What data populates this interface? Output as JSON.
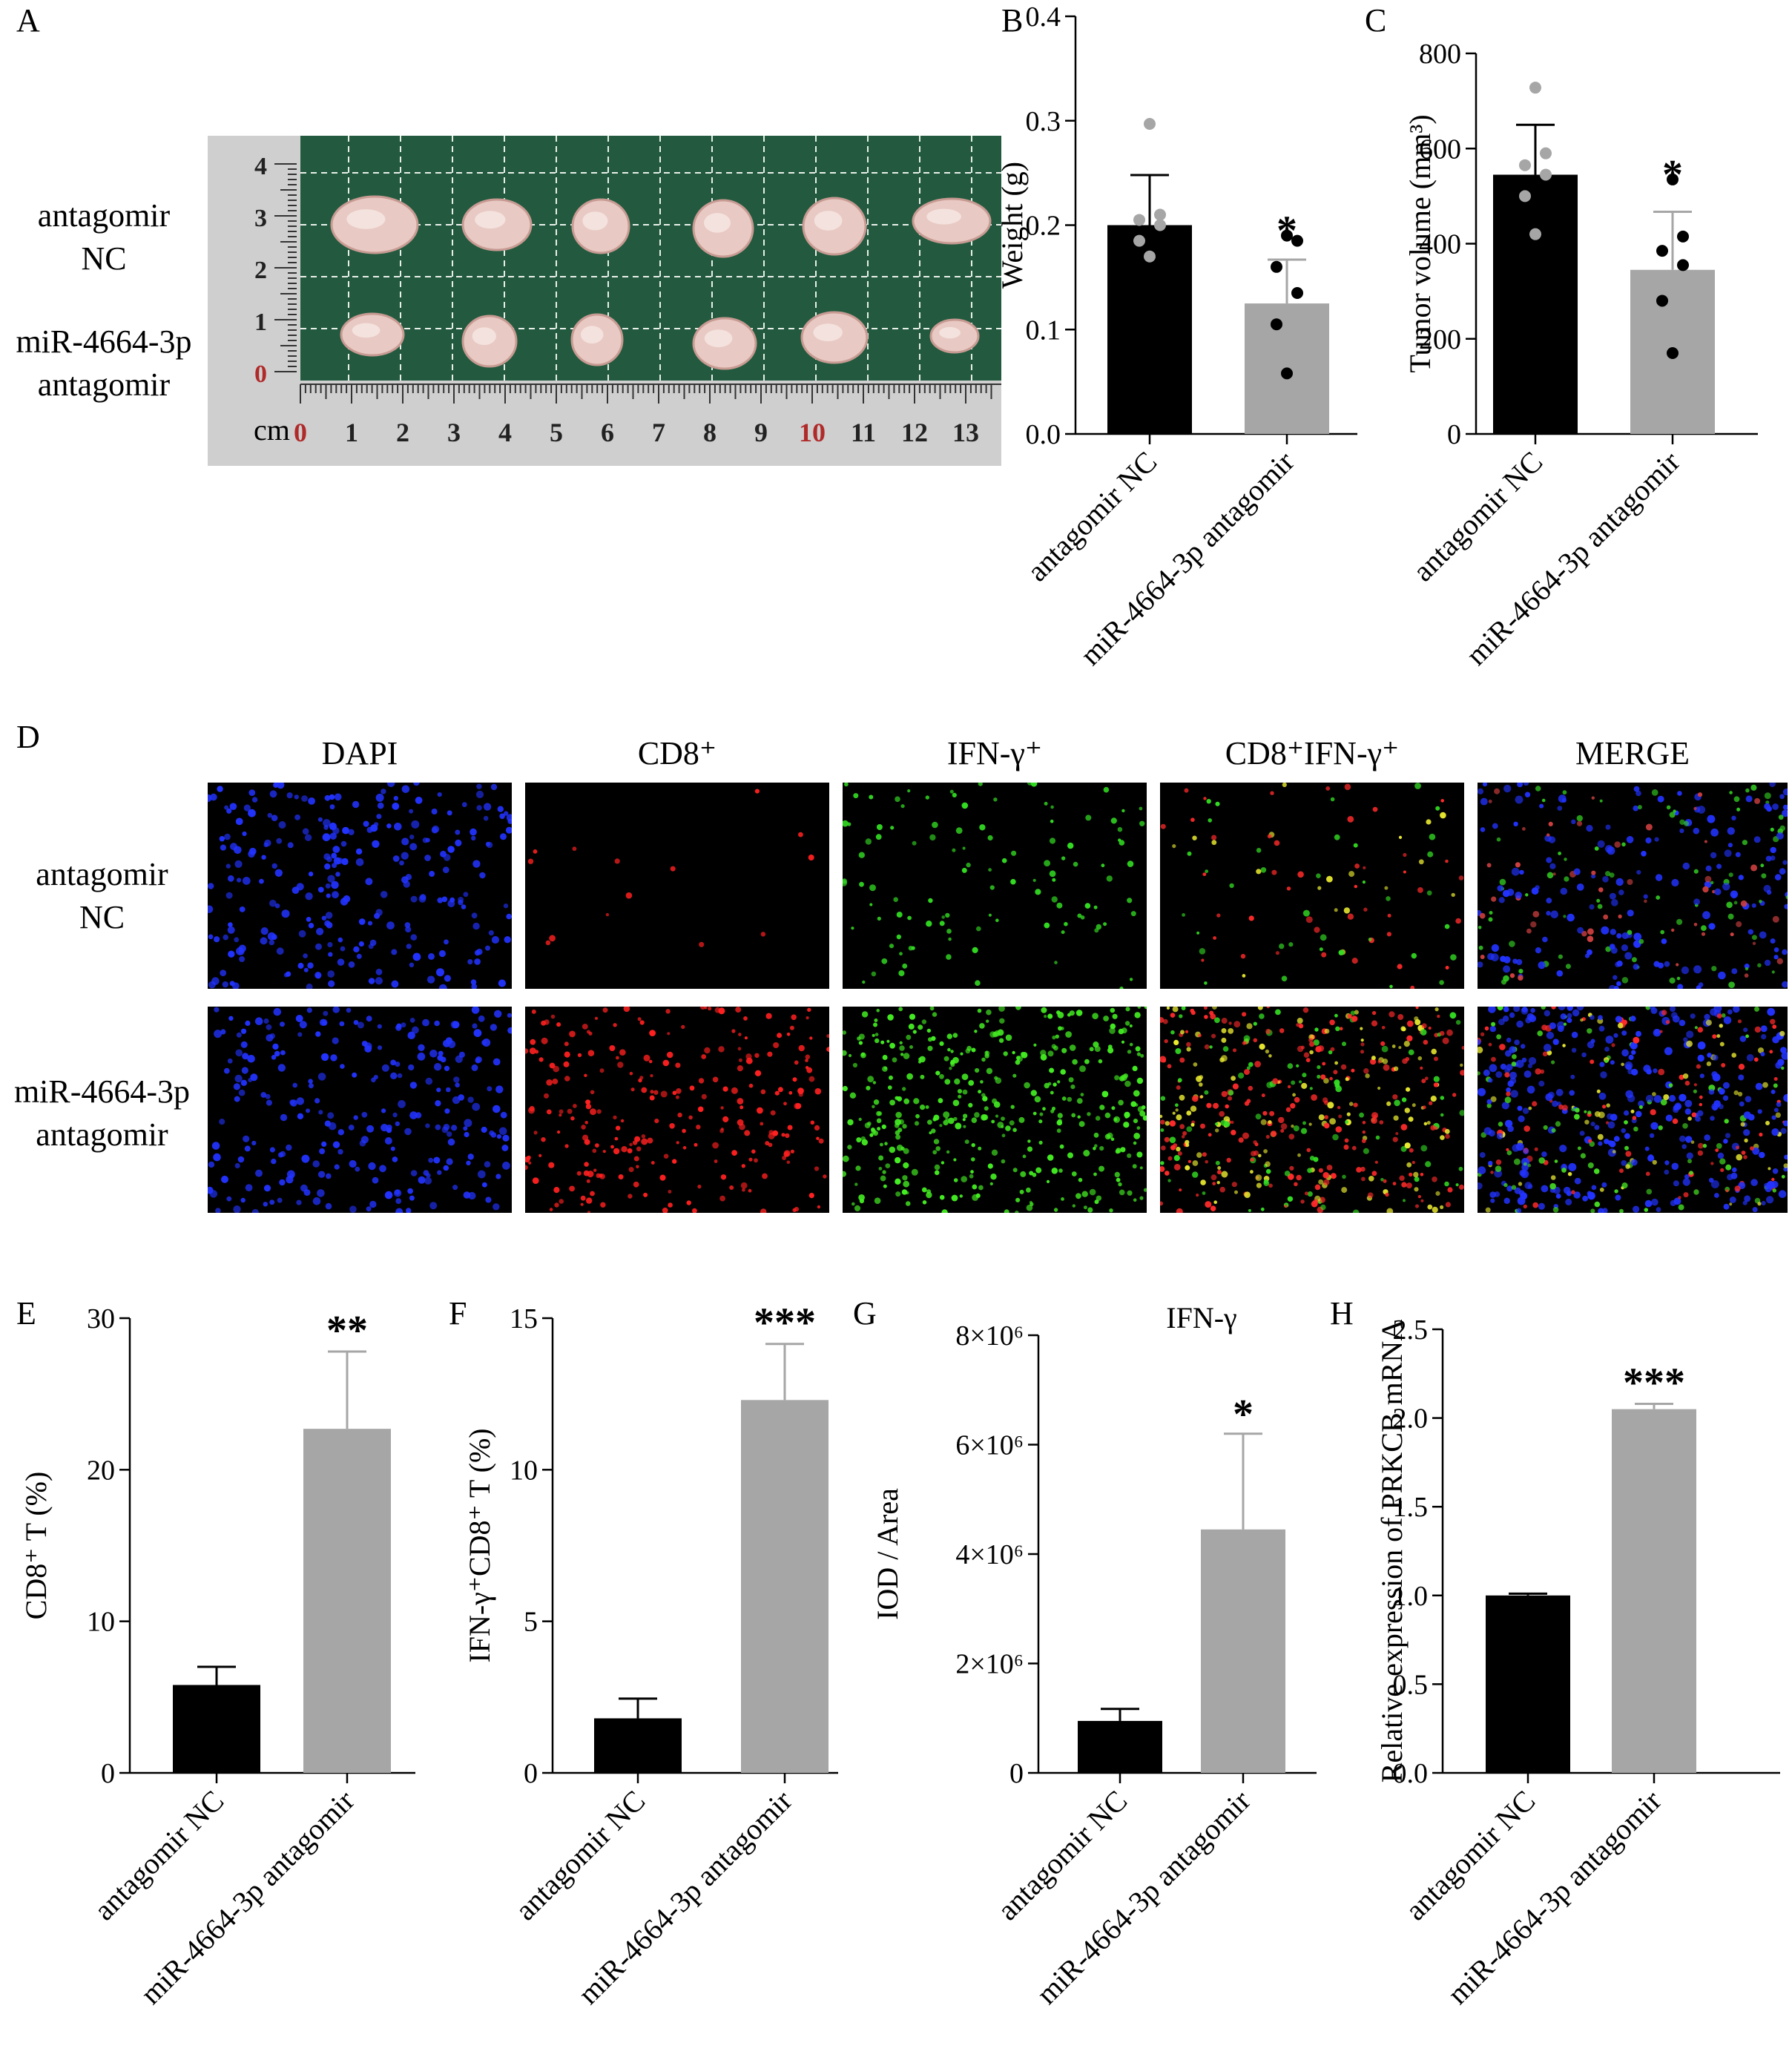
{
  "panel_letters": {
    "A": "A",
    "B": "B",
    "C": "C",
    "D": "D",
    "E": "E",
    "F": "F",
    "G": "G",
    "H": "H"
  },
  "groups": [
    "antagomir NC",
    "miR-4664-3p antagomir"
  ],
  "panelA": {
    "row1_label_line1": "antagomir",
    "row1_label_line2": "NC",
    "row2_label_line1": "miR-4664-3p",
    "row2_label_line2": "antagomir",
    "ruler_unit": "cm",
    "ruler_ticks": [
      "0",
      "1",
      "2",
      "3",
      "4",
      "5",
      "6",
      "7",
      "8",
      "9",
      "10",
      "11",
      "12",
      "13"
    ],
    "vertical_ticks": [
      "0",
      "1",
      "2",
      "3",
      "4"
    ]
  },
  "panelD": {
    "channels": [
      "DAPI",
      "CD8⁺",
      "IFN-γ⁺",
      "CD8⁺IFN-γ⁺",
      "MERGE"
    ],
    "row1_label_line1": "antagomir",
    "row1_label_line2": "NC",
    "row2_label_line1": "miR-4664-3p",
    "row2_label_line2": "antagomir"
  },
  "chart_data": [
    {
      "panel": "B",
      "type": "bar",
      "categories": [
        "antagomir NC",
        "miR-4664-3p antagomir"
      ],
      "values": [
        0.2,
        0.125
      ],
      "error": [
        0.048,
        0.042
      ],
      "points": [
        [
          0.297,
          0.21,
          0.205,
          0.2,
          0.185,
          0.17
        ],
        [
          0.19,
          0.185,
          0.16,
          0.135,
          0.105,
          0.058
        ]
      ],
      "ylabel": "Weight (g)",
      "ylim": [
        0,
        0.4
      ],
      "yticks": [
        "0.0",
        "0.1",
        "0.2",
        "0.3",
        "0.4"
      ],
      "significance": "*",
      "colors": [
        "#000000",
        "#a6a6a6"
      ],
      "point_colors": [
        "#a6a6a6",
        "#000000"
      ]
    },
    {
      "panel": "C",
      "type": "bar",
      "categories": [
        "antagomir NC",
        "miR-4664-3p antagomir"
      ],
      "values": [
        545,
        345
      ],
      "error": [
        105,
        122
      ],
      "points": [
        [
          728,
          590,
          565,
          545,
          500,
          420
        ],
        [
          535,
          415,
          385,
          355,
          280,
          170
        ]
      ],
      "ylabel": "Tumor volume (mm³)",
      "ylim": [
        0,
        800
      ],
      "yticks": [
        "0",
        "200",
        "400",
        "600",
        "800"
      ],
      "significance": "*",
      "colors": [
        "#000000",
        "#a6a6a6"
      ],
      "point_colors": [
        "#a6a6a6",
        "#000000"
      ]
    },
    {
      "panel": "E",
      "type": "bar",
      "categories": [
        "antagomir NC",
        "miR-4664-3p antagomir"
      ],
      "values": [
        5.8,
        22.7
      ],
      "error": [
        1.2,
        5.1
      ],
      "ylabel": "CD8⁺ T (%)",
      "ylim": [
        0,
        30
      ],
      "yticks": [
        "0",
        "10",
        "20",
        "30"
      ],
      "significance": "**",
      "colors": [
        "#000000",
        "#a6a6a6"
      ]
    },
    {
      "panel": "F",
      "type": "bar",
      "categories": [
        "antagomir NC",
        "miR-4664-3p antagomir"
      ],
      "values": [
        1.8,
        12.3
      ],
      "error": [
        0.65,
        1.85
      ],
      "ylabel": "IFN-γ⁺CD8⁺ T  (%)",
      "ylim": [
        0,
        15
      ],
      "yticks": [
        "0",
        "5",
        "10",
        "15"
      ],
      "significance": "***",
      "colors": [
        "#000000",
        "#a6a6a6"
      ]
    },
    {
      "panel": "G",
      "type": "bar",
      "title": "IFN-γ",
      "categories": [
        "antagomir NC",
        "miR-4664-3p antagomir"
      ],
      "values": [
        950000,
        4450000
      ],
      "error": [
        220000,
        1750000
      ],
      "ylabel": "IOD / Area",
      "ylim": [
        0,
        8000000
      ],
      "yticks": [
        "0",
        "2×10⁶",
        "4×10⁶",
        "6×10⁶",
        "8×10⁶"
      ],
      "significance": "*",
      "colors": [
        "#000000",
        "#a6a6a6"
      ]
    },
    {
      "panel": "H",
      "type": "bar",
      "categories": [
        "antagomir NC",
        "miR-4664-3p antagomir"
      ],
      "values": [
        1.0,
        2.05
      ],
      "error": [
        0.01,
        0.03
      ],
      "ylabel": "Relative  expression of PRKCB mRNA",
      "ylim": [
        0,
        2.5
      ],
      "yticks": [
        "0.0",
        "0.5",
        "1.0",
        "1.5",
        "2.0",
        "2.5"
      ],
      "significance": "***",
      "colors": [
        "#000000",
        "#a6a6a6"
      ]
    }
  ]
}
